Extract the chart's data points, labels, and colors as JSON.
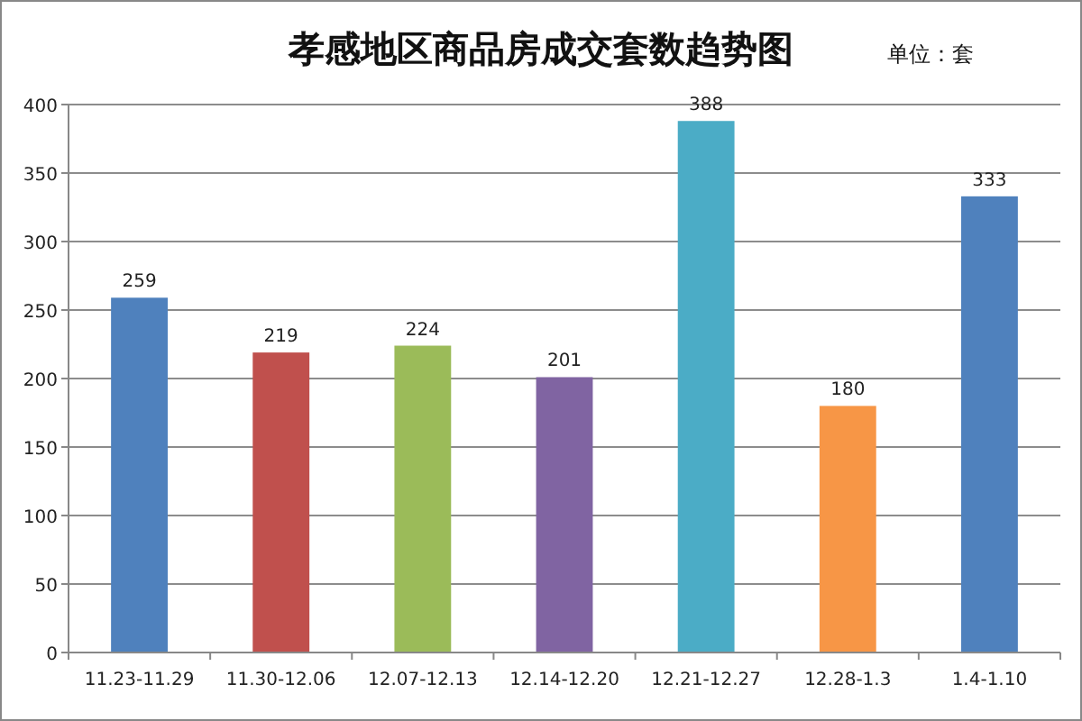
{
  "chart_data": {
    "type": "bar",
    "title": "孝感地区商品房成交套数趋势图",
    "annotations": [
      "单位：套"
    ],
    "categories": [
      "11.23-11.29",
      "11.30-12.06",
      "12.07-12.13",
      "12.14-12.20",
      "12.21-12.27",
      "12.28-1.3",
      "1.4-1.10"
    ],
    "values": [
      259,
      219,
      224,
      201,
      388,
      180,
      333
    ],
    "colors": [
      "#4f81bd",
      "#c0504d",
      "#9bbb59",
      "#8064a2",
      "#4bacc6",
      "#f79646",
      "#4f81bd"
    ],
    "ylim": [
      0,
      400
    ],
    "yticks": [
      0,
      50,
      100,
      150,
      200,
      250,
      300,
      350,
      400
    ],
    "grid": "y",
    "data_labels": true
  }
}
